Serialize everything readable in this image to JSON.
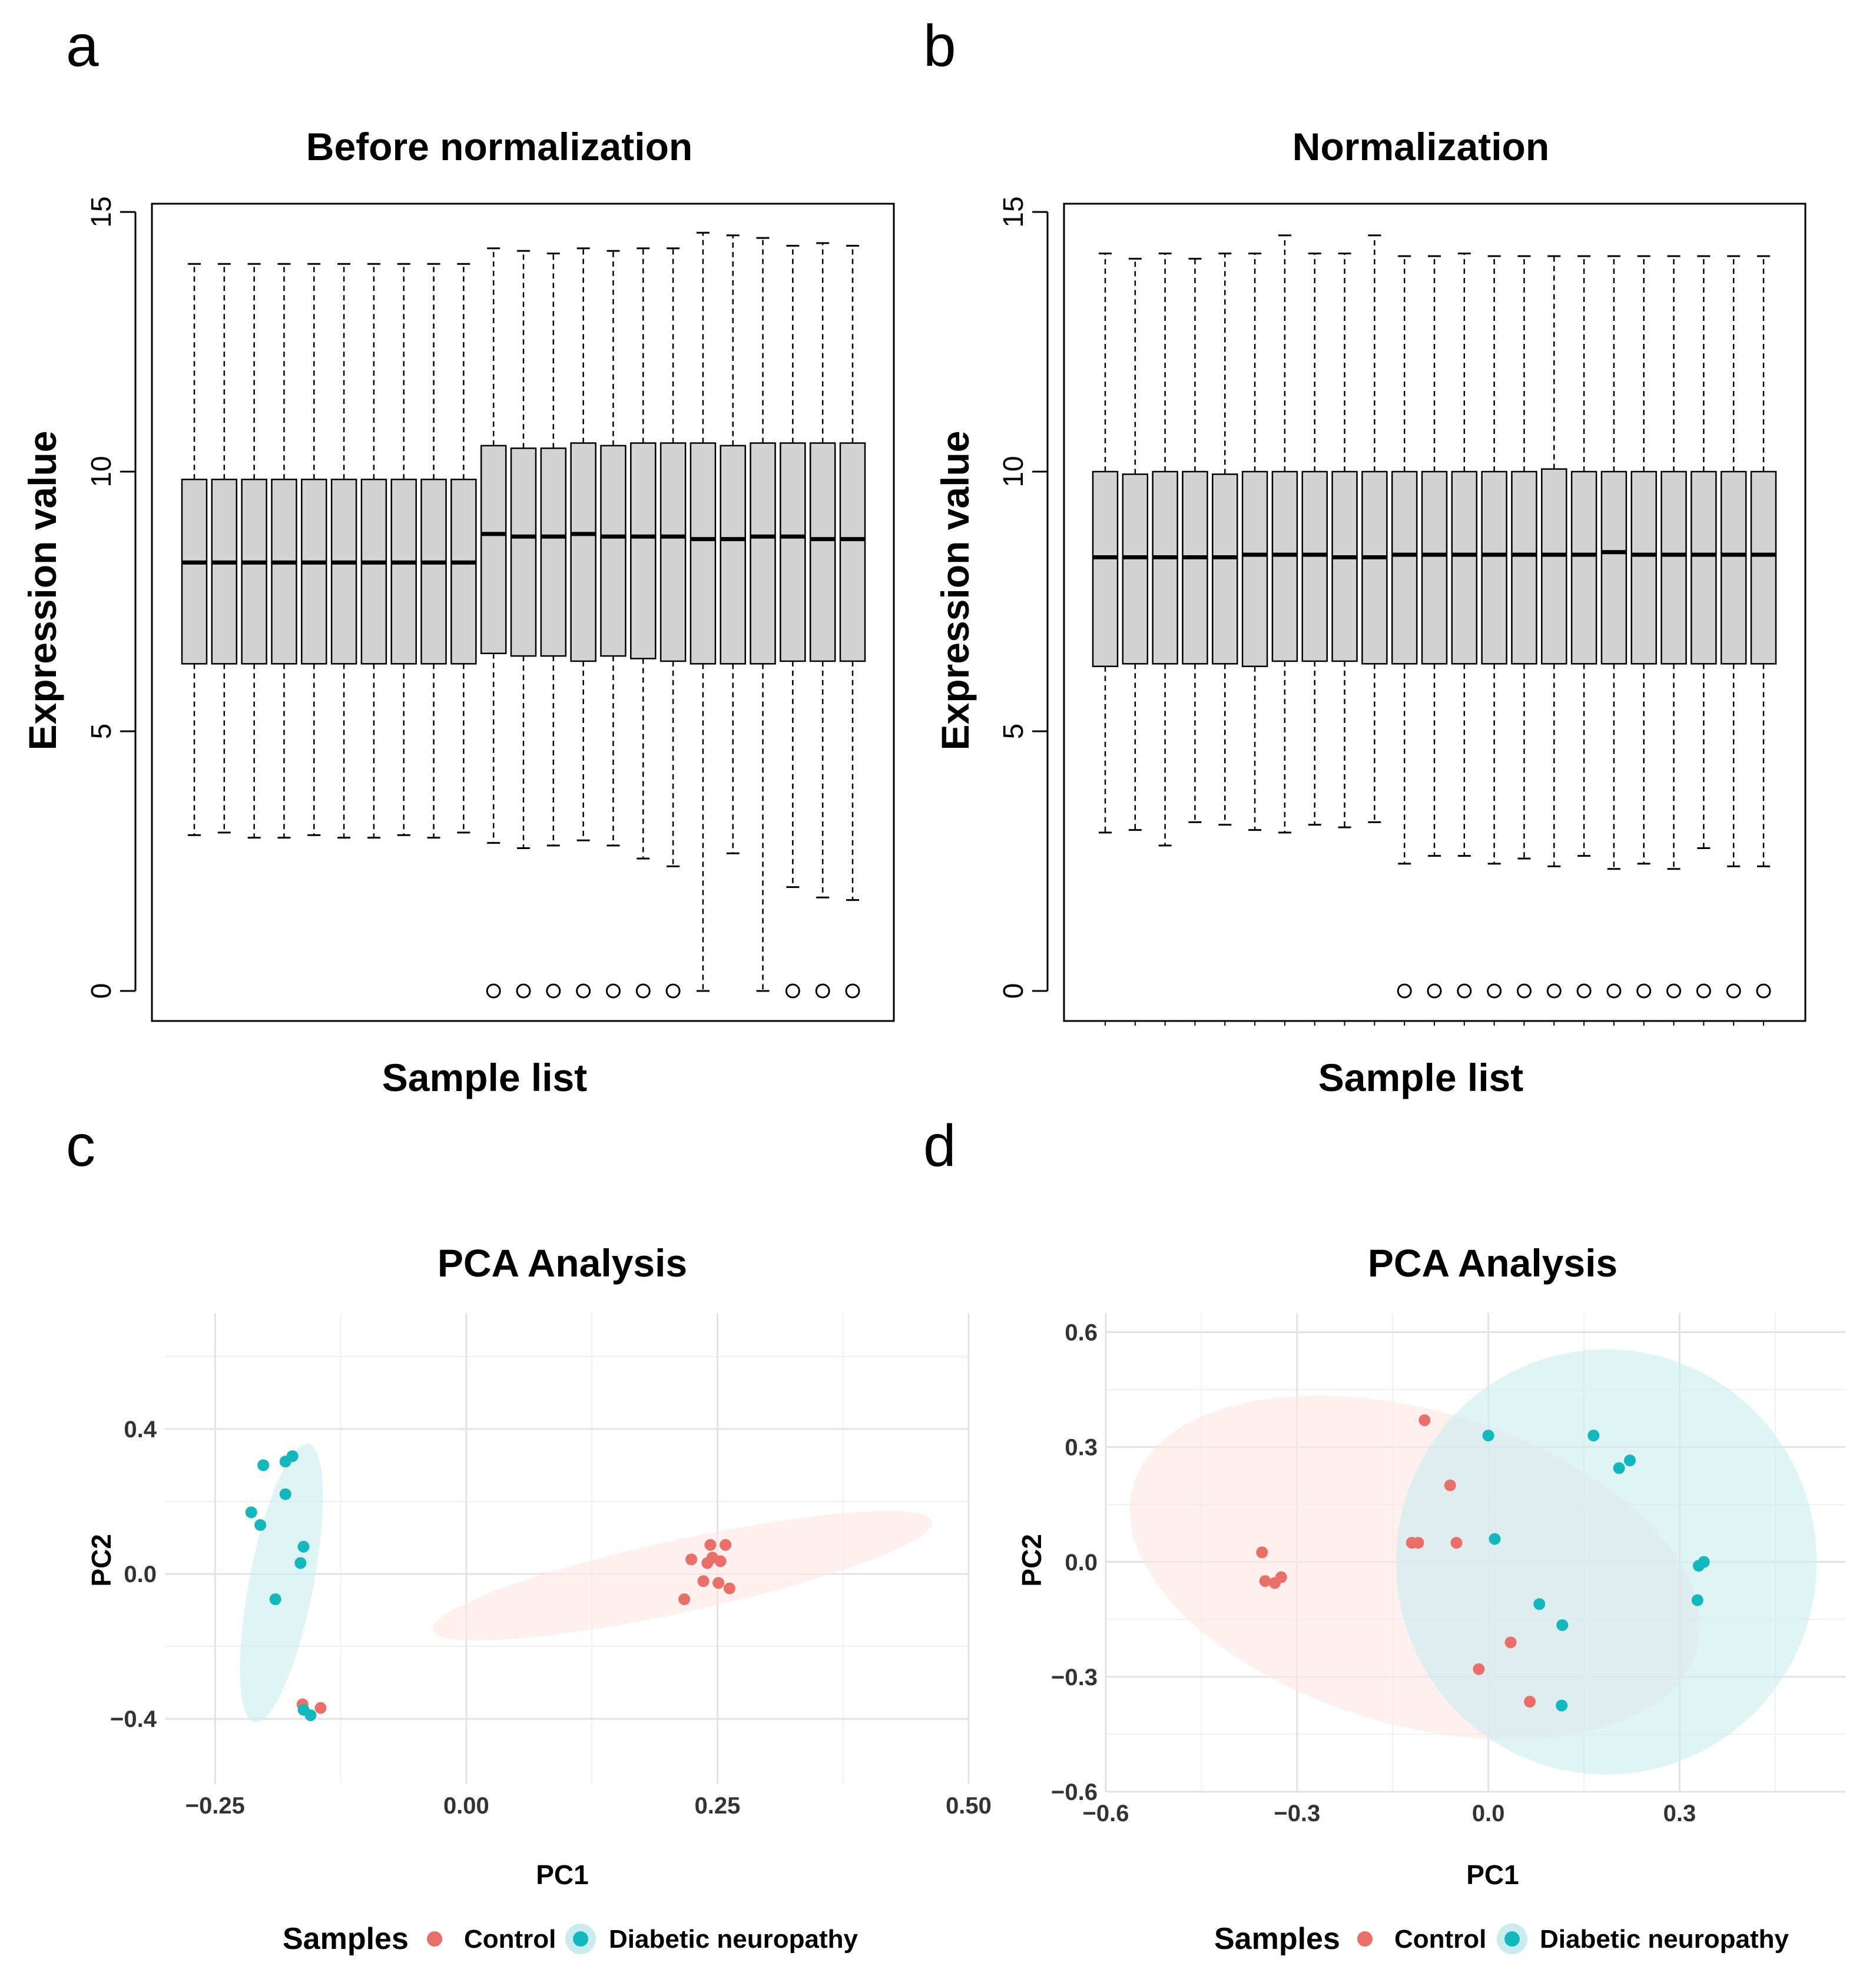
{
  "panel_labels": [
    "a",
    "b",
    "c",
    "d"
  ],
  "colors": {
    "control": "#ea6f69",
    "dn": "#12b8be",
    "control_fill": "#fbe6e4",
    "dn_fill": "#c9ecef",
    "box_fill": "#d3d3d3",
    "grid_major": "#e3e3e3",
    "grid_minor": "#f1f1f1"
  },
  "chart_data": [
    {
      "type": "box",
      "title": "Before normalization",
      "xlabel": "Sample list",
      "ylabel": "Expression value",
      "ylim": [
        0,
        15
      ],
      "yticks": [
        0,
        5,
        10,
        15
      ],
      "boxes": [
        {
          "lw": 3.0,
          "q1": 6.3,
          "med": 8.25,
          "q3": 9.85,
          "uw": 14.0,
          "out": false
        },
        {
          "lw": 3.05,
          "q1": 6.3,
          "med": 8.25,
          "q3": 9.85,
          "uw": 14.0,
          "out": false
        },
        {
          "lw": 2.95,
          "q1": 6.3,
          "med": 8.25,
          "q3": 9.85,
          "uw": 14.0,
          "out": false
        },
        {
          "lw": 2.95,
          "q1": 6.3,
          "med": 8.25,
          "q3": 9.85,
          "uw": 14.0,
          "out": false
        },
        {
          "lw": 3.0,
          "q1": 6.3,
          "med": 8.25,
          "q3": 9.85,
          "uw": 14.0,
          "out": false
        },
        {
          "lw": 2.95,
          "q1": 6.3,
          "med": 8.25,
          "q3": 9.85,
          "uw": 14.0,
          "out": false
        },
        {
          "lw": 2.95,
          "q1": 6.3,
          "med": 8.25,
          "q3": 9.85,
          "uw": 14.0,
          "out": false
        },
        {
          "lw": 3.0,
          "q1": 6.3,
          "med": 8.25,
          "q3": 9.85,
          "uw": 14.0,
          "out": false
        },
        {
          "lw": 2.95,
          "q1": 6.3,
          "med": 8.25,
          "q3": 9.85,
          "uw": 14.0,
          "out": false
        },
        {
          "lw": 3.05,
          "q1": 6.3,
          "med": 8.25,
          "q3": 9.85,
          "uw": 14.0,
          "out": false
        },
        {
          "lw": 2.85,
          "q1": 6.5,
          "med": 8.8,
          "q3": 10.5,
          "uw": 14.3,
          "out": true
        },
        {
          "lw": 2.75,
          "q1": 6.45,
          "med": 8.75,
          "q3": 10.45,
          "uw": 14.25,
          "out": true
        },
        {
          "lw": 2.8,
          "q1": 6.45,
          "med": 8.75,
          "q3": 10.45,
          "uw": 14.2,
          "out": true
        },
        {
          "lw": 2.9,
          "q1": 6.35,
          "med": 8.8,
          "q3": 10.55,
          "uw": 14.3,
          "out": true
        },
        {
          "lw": 2.8,
          "q1": 6.45,
          "med": 8.75,
          "q3": 10.5,
          "uw": 14.25,
          "out": true
        },
        {
          "lw": 2.55,
          "q1": 6.4,
          "med": 8.75,
          "q3": 10.55,
          "uw": 14.3,
          "out": true
        },
        {
          "lw": 2.4,
          "q1": 6.35,
          "med": 8.75,
          "q3": 10.55,
          "uw": 14.3,
          "out": true
        },
        {
          "lw": 0.0,
          "q1": 6.3,
          "med": 8.7,
          "q3": 10.55,
          "uw": 14.6,
          "out": false
        },
        {
          "lw": 2.65,
          "q1": 6.3,
          "med": 8.7,
          "q3": 10.5,
          "uw": 14.55,
          "out": false
        },
        {
          "lw": 0.0,
          "q1": 6.3,
          "med": 8.75,
          "q3": 10.55,
          "uw": 14.5,
          "out": false
        },
        {
          "lw": 2.0,
          "q1": 6.35,
          "med": 8.75,
          "q3": 10.55,
          "uw": 14.35,
          "out": true
        },
        {
          "lw": 1.8,
          "q1": 6.35,
          "med": 8.7,
          "q3": 10.55,
          "uw": 14.4,
          "out": true
        },
        {
          "lw": 1.75,
          "q1": 6.35,
          "med": 8.7,
          "q3": 10.55,
          "uw": 14.35,
          "out": true
        }
      ]
    },
    {
      "type": "box",
      "title": "Normalization",
      "xlabel": "Sample list",
      "ylabel": "Expression value",
      "ylim": [
        0,
        15
      ],
      "yticks": [
        0,
        5,
        10,
        15
      ],
      "boxes": [
        {
          "lw": 3.05,
          "q1": 6.25,
          "med": 8.35,
          "q3": 10.0,
          "uw": 14.2,
          "out": false
        },
        {
          "lw": 3.1,
          "q1": 6.3,
          "med": 8.35,
          "q3": 9.95,
          "uw": 14.1,
          "out": false
        },
        {
          "lw": 2.8,
          "q1": 6.3,
          "med": 8.35,
          "q3": 10.0,
          "uw": 14.2,
          "out": false
        },
        {
          "lw": 3.25,
          "q1": 6.3,
          "med": 8.35,
          "q3": 10.0,
          "uw": 14.1,
          "out": false
        },
        {
          "lw": 3.2,
          "q1": 6.3,
          "med": 8.35,
          "q3": 9.95,
          "uw": 14.2,
          "out": false
        },
        {
          "lw": 3.1,
          "q1": 6.25,
          "med": 8.4,
          "q3": 10.0,
          "uw": 14.2,
          "out": false
        },
        {
          "lw": 3.05,
          "q1": 6.35,
          "med": 8.4,
          "q3": 10.0,
          "uw": 14.55,
          "out": false
        },
        {
          "lw": 3.2,
          "q1": 6.35,
          "med": 8.4,
          "q3": 10.0,
          "uw": 14.2,
          "out": false
        },
        {
          "lw": 3.15,
          "q1": 6.35,
          "med": 8.35,
          "q3": 10.0,
          "uw": 14.2,
          "out": false
        },
        {
          "lw": 3.25,
          "q1": 6.3,
          "med": 8.35,
          "q3": 10.0,
          "uw": 14.55,
          "out": false
        },
        {
          "lw": 2.45,
          "q1": 6.3,
          "med": 8.4,
          "q3": 10.0,
          "uw": 14.15,
          "out": true
        },
        {
          "lw": 2.6,
          "q1": 6.3,
          "med": 8.4,
          "q3": 10.0,
          "uw": 14.15,
          "out": true
        },
        {
          "lw": 2.6,
          "q1": 6.3,
          "med": 8.4,
          "q3": 10.0,
          "uw": 14.2,
          "out": true
        },
        {
          "lw": 2.45,
          "q1": 6.3,
          "med": 8.4,
          "q3": 10.0,
          "uw": 14.15,
          "out": true
        },
        {
          "lw": 2.55,
          "q1": 6.3,
          "med": 8.4,
          "q3": 10.0,
          "uw": 14.15,
          "out": true
        },
        {
          "lw": 2.4,
          "q1": 6.3,
          "med": 8.4,
          "q3": 10.05,
          "uw": 14.15,
          "out": true
        },
        {
          "lw": 2.6,
          "q1": 6.3,
          "med": 8.4,
          "q3": 10.0,
          "uw": 14.15,
          "out": true
        },
        {
          "lw": 2.35,
          "q1": 6.3,
          "med": 8.45,
          "q3": 10.0,
          "uw": 14.15,
          "out": true
        },
        {
          "lw": 2.45,
          "q1": 6.3,
          "med": 8.4,
          "q3": 10.0,
          "uw": 14.15,
          "out": true
        },
        {
          "lw": 2.35,
          "q1": 6.3,
          "med": 8.4,
          "q3": 10.0,
          "uw": 14.15,
          "out": true
        },
        {
          "lw": 2.75,
          "q1": 6.3,
          "med": 8.4,
          "q3": 10.0,
          "uw": 14.15,
          "out": true
        },
        {
          "lw": 2.4,
          "q1": 6.3,
          "med": 8.4,
          "q3": 10.0,
          "uw": 14.15,
          "out": true
        },
        {
          "lw": 2.4,
          "q1": 6.3,
          "med": 8.4,
          "q3": 10.0,
          "uw": 14.15,
          "out": true
        }
      ]
    },
    {
      "type": "scatter",
      "title": "PCA Analysis",
      "xlabel": "PC1",
      "ylabel": "PC2",
      "xlim": [
        -0.3,
        0.5
      ],
      "ylim": [
        -0.58,
        0.72
      ],
      "xticks": [
        -0.25,
        0.0,
        0.25,
        0.5
      ],
      "xtick_labels": [
        "−0.25",
        "0.00",
        "0.25",
        "0.50"
      ],
      "yticks": [
        -0.4,
        0.0,
        0.4
      ],
      "ytick_labels": [
        "−0.4",
        "0.0",
        "0.4"
      ],
      "legend": {
        "title": "Samples",
        "items": [
          "Control",
          "Diabetic neuropathy"
        ]
      },
      "ellipses": [
        {
          "group": "dn",
          "cx": -0.184,
          "cy": -0.025,
          "rx": 0.385,
          "ry": 0.032,
          "angle_deg": 86
        },
        {
          "group": "control",
          "cx": 0.215,
          "cy": -0.005,
          "rx": 0.29,
          "ry": 0.06,
          "angle_deg": 31
        }
      ],
      "series": [
        {
          "name": "Control",
          "group": "control",
          "points": [
            [
              0.243,
              0.08
            ],
            [
              0.258,
              0.08
            ],
            [
              0.224,
              0.04
            ],
            [
              0.245,
              0.045
            ],
            [
              0.24,
              0.03
            ],
            [
              0.253,
              0.035
            ],
            [
              0.236,
              -0.02
            ],
            [
              0.251,
              -0.025
            ],
            [
              0.262,
              -0.04
            ],
            [
              0.217,
              -0.07
            ],
            [
              -0.163,
              -0.36
            ],
            [
              -0.145,
              -0.37
            ]
          ]
        },
        {
          "name": "Diabetic neuropathy",
          "group": "dn",
          "points": [
            [
              -0.173,
              0.325
            ],
            [
              -0.18,
              0.31
            ],
            [
              -0.202,
              0.3
            ],
            [
              -0.18,
              0.22
            ],
            [
              -0.214,
              0.17
            ],
            [
              -0.205,
              0.135
            ],
            [
              -0.162,
              0.075
            ],
            [
              -0.165,
              0.03
            ],
            [
              -0.19,
              -0.07
            ],
            [
              -0.162,
              -0.375
            ],
            [
              -0.155,
              -0.39
            ]
          ]
        }
      ]
    },
    {
      "type": "scatter",
      "title": "PCA Analysis",
      "xlabel": "PC1",
      "ylabel": "PC2",
      "xlim": [
        -0.6,
        0.56
      ],
      "ylim": [
        -0.6,
        0.65
      ],
      "xticks": [
        -0.6,
        -0.3,
        0.0,
        0.3
      ],
      "xtick_labels": [
        "−0.6",
        "−0.3",
        "0.0",
        "0.3"
      ],
      "yticks": [
        -0.6,
        -0.3,
        0.0,
        0.3,
        0.6
      ],
      "ytick_labels": [
        "−0.6",
        "−0.3",
        "0.0",
        "0.3",
        "0.6"
      ],
      "legend": {
        "title": "Samples",
        "items": [
          "Control",
          "Diabetic neuropathy"
        ]
      },
      "ellipses": [
        {
          "group": "control",
          "cx": -0.115,
          "cy": -0.015,
          "rx": 0.4,
          "ry": 0.465,
          "angle_deg": 80
        },
        {
          "group": "dn",
          "cx": 0.185,
          "cy": 0.0,
          "rx": 0.33,
          "ry": 0.555,
          "angle_deg": 0
        }
      ],
      "series": [
        {
          "name": "Control",
          "group": "control",
          "points": [
            [
              -0.1,
              0.37
            ],
            [
              -0.06,
              0.2
            ],
            [
              -0.12,
              0.05
            ],
            [
              -0.11,
              0.05
            ],
            [
              -0.05,
              0.05
            ],
            [
              -0.355,
              0.025
            ],
            [
              -0.35,
              -0.05
            ],
            [
              -0.335,
              -0.055
            ],
            [
              -0.325,
              -0.04
            ],
            [
              0.035,
              -0.21
            ],
            [
              -0.015,
              -0.28
            ],
            [
              0.065,
              -0.365
            ]
          ]
        },
        {
          "name": "Diabetic neuropathy",
          "group": "dn",
          "points": [
            [
              0.0,
              0.33
            ],
            [
              0.165,
              0.33
            ],
            [
              0.205,
              0.245
            ],
            [
              0.222,
              0.265
            ],
            [
              0.01,
              0.06
            ],
            [
              0.338,
              0.0
            ],
            [
              0.33,
              -0.01
            ],
            [
              0.328,
              -0.1
            ],
            [
              0.08,
              -0.11
            ],
            [
              0.116,
              -0.165
            ],
            [
              0.115,
              -0.375
            ]
          ]
        }
      ]
    }
  ]
}
